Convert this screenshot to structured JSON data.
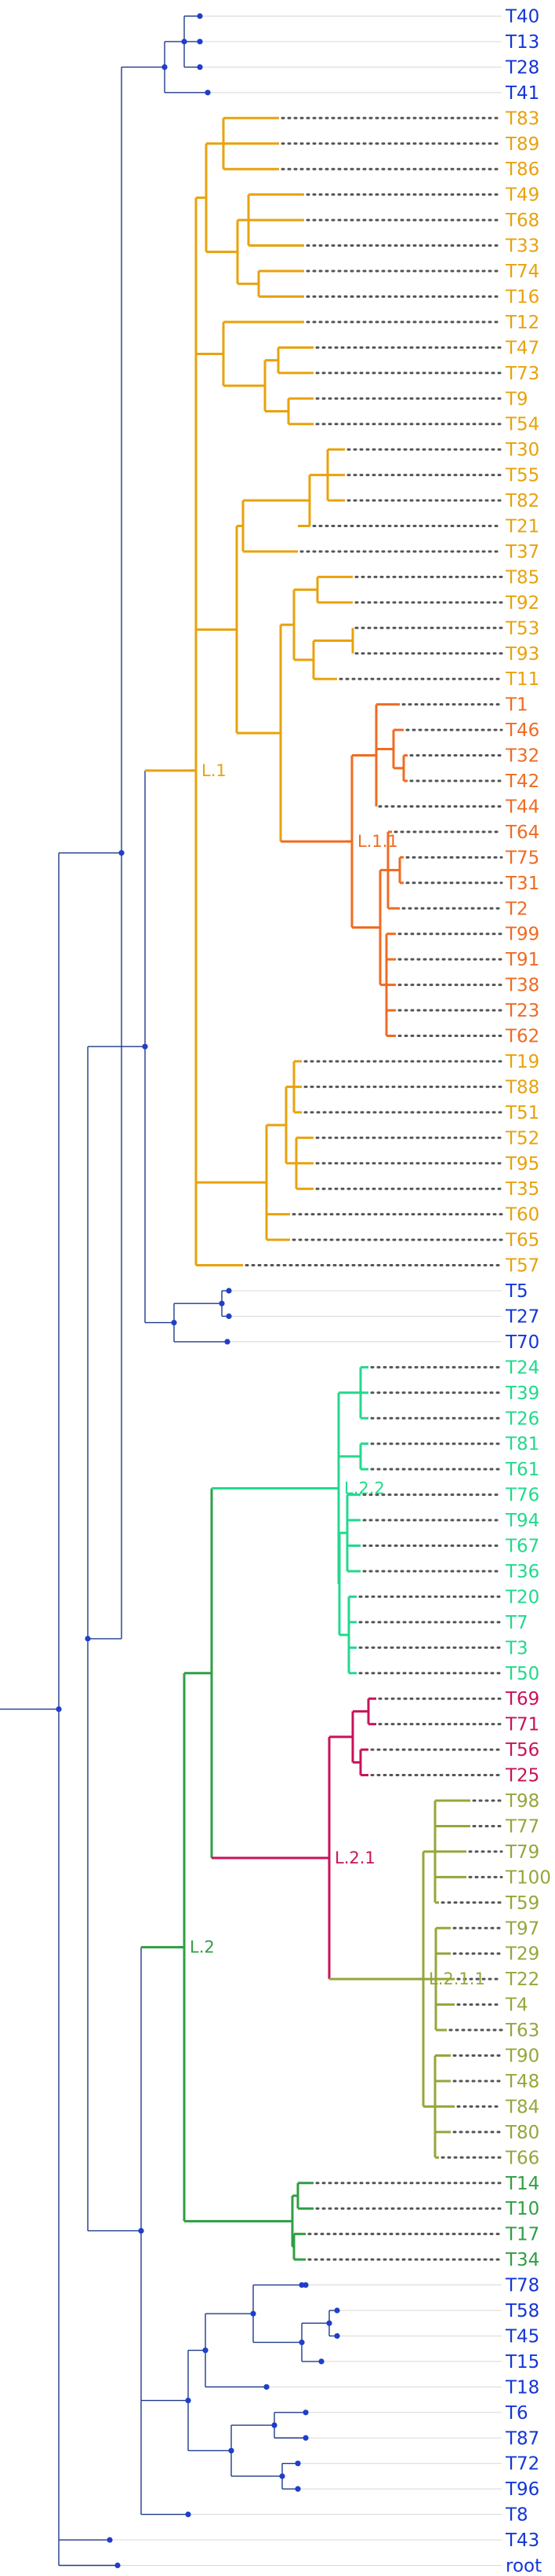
{
  "colors": {
    "backbone": "#1e3a8a",
    "node": "#1f3fc9",
    "blue": "#1436d6",
    "L1": "#e8a20c",
    "L1_1": "#ef6b22",
    "L2": "#2f9e44",
    "L2_2": "#22d98c",
    "L2_1": "#c8125a",
    "L2_1_1": "#94a73a",
    "dots": "#555555",
    "gridline": "#d8d8d8"
  },
  "clade_labels": {
    "L1": "L.1",
    "L1_1": "L.1.1",
    "L2": "L.2",
    "L2_2": "L.2.2",
    "L2_1": "L.2.1",
    "L2_1_1": "L.2.1.1"
  },
  "tips": [
    {
      "label": "T40",
      "group": "blue"
    },
    {
      "label": "T13",
      "group": "blue"
    },
    {
      "label": "T28",
      "group": "blue"
    },
    {
      "label": "T41",
      "group": "blue"
    },
    {
      "label": "T83",
      "group": "L1"
    },
    {
      "label": "T89",
      "group": "L1"
    },
    {
      "label": "T86",
      "group": "L1"
    },
    {
      "label": "T49",
      "group": "L1"
    },
    {
      "label": "T68",
      "group": "L1"
    },
    {
      "label": "T33",
      "group": "L1"
    },
    {
      "label": "T74",
      "group": "L1"
    },
    {
      "label": "T16",
      "group": "L1"
    },
    {
      "label": "T12",
      "group": "L1"
    },
    {
      "label": "T47",
      "group": "L1"
    },
    {
      "label": "T73",
      "group": "L1"
    },
    {
      "label": "T9",
      "group": "L1"
    },
    {
      "label": "T54",
      "group": "L1"
    },
    {
      "label": "T30",
      "group": "L1"
    },
    {
      "label": "T55",
      "group": "L1"
    },
    {
      "label": "T82",
      "group": "L1"
    },
    {
      "label": "T21",
      "group": "L1"
    },
    {
      "label": "T37",
      "group": "L1"
    },
    {
      "label": "T85",
      "group": "L1"
    },
    {
      "label": "T92",
      "group": "L1"
    },
    {
      "label": "T53",
      "group": "L1"
    },
    {
      "label": "T93",
      "group": "L1"
    },
    {
      "label": "T11",
      "group": "L1"
    },
    {
      "label": "T1",
      "group": "L1_1"
    },
    {
      "label": "T46",
      "group": "L1_1"
    },
    {
      "label": "T32",
      "group": "L1_1"
    },
    {
      "label": "T42",
      "group": "L1_1"
    },
    {
      "label": "T44",
      "group": "L1_1"
    },
    {
      "label": "T64",
      "group": "L1_1"
    },
    {
      "label": "T75",
      "group": "L1_1"
    },
    {
      "label": "T31",
      "group": "L1_1"
    },
    {
      "label": "T2",
      "group": "L1_1"
    },
    {
      "label": "T99",
      "group": "L1_1"
    },
    {
      "label": "T91",
      "group": "L1_1"
    },
    {
      "label": "T38",
      "group": "L1_1"
    },
    {
      "label": "T23",
      "group": "L1_1"
    },
    {
      "label": "T62",
      "group": "L1_1"
    },
    {
      "label": "T19",
      "group": "L1"
    },
    {
      "label": "T88",
      "group": "L1"
    },
    {
      "label": "T51",
      "group": "L1"
    },
    {
      "label": "T52",
      "group": "L1"
    },
    {
      "label": "T95",
      "group": "L1"
    },
    {
      "label": "T35",
      "group": "L1"
    },
    {
      "label": "T60",
      "group": "L1"
    },
    {
      "label": "T65",
      "group": "L1"
    },
    {
      "label": "T57",
      "group": "L1"
    },
    {
      "label": "T5",
      "group": "blue"
    },
    {
      "label": "T27",
      "group": "blue"
    },
    {
      "label": "T70",
      "group": "blue"
    },
    {
      "label": "T24",
      "group": "L2_2"
    },
    {
      "label": "T39",
      "group": "L2_2"
    },
    {
      "label": "T26",
      "group": "L2_2"
    },
    {
      "label": "T81",
      "group": "L2_2"
    },
    {
      "label": "T61",
      "group": "L2_2"
    },
    {
      "label": "T76",
      "group": "L2_2"
    },
    {
      "label": "T94",
      "group": "L2_2"
    },
    {
      "label": "T67",
      "group": "L2_2"
    },
    {
      "label": "T36",
      "group": "L2_2"
    },
    {
      "label": "T20",
      "group": "L2_2"
    },
    {
      "label": "T7",
      "group": "L2_2"
    },
    {
      "label": "T3",
      "group": "L2_2"
    },
    {
      "label": "T50",
      "group": "L2_2"
    },
    {
      "label": "T69",
      "group": "L2_1"
    },
    {
      "label": "T71",
      "group": "L2_1"
    },
    {
      "label": "T56",
      "group": "L2_1"
    },
    {
      "label": "T25",
      "group": "L2_1"
    },
    {
      "label": "T98",
      "group": "L2_1_1"
    },
    {
      "label": "T77",
      "group": "L2_1_1"
    },
    {
      "label": "T79",
      "group": "L2_1_1"
    },
    {
      "label": "T100",
      "group": "L2_1_1"
    },
    {
      "label": "T59",
      "group": "L2_1_1"
    },
    {
      "label": "T97",
      "group": "L2_1_1"
    },
    {
      "label": "T29",
      "group": "L2_1_1"
    },
    {
      "label": "T22",
      "group": "L2_1_1"
    },
    {
      "label": "T4",
      "group": "L2_1_1"
    },
    {
      "label": "T63",
      "group": "L2_1_1"
    },
    {
      "label": "T90",
      "group": "L2_1_1"
    },
    {
      "label": "T48",
      "group": "L2_1_1"
    },
    {
      "label": "T84",
      "group": "L2_1_1"
    },
    {
      "label": "T80",
      "group": "L2_1_1"
    },
    {
      "label": "T66",
      "group": "L2_1_1"
    },
    {
      "label": "T14",
      "group": "L2"
    },
    {
      "label": "T10",
      "group": "L2"
    },
    {
      "label": "T17",
      "group": "L2"
    },
    {
      "label": "T34",
      "group": "L2"
    },
    {
      "label": "T78",
      "group": "blue"
    },
    {
      "label": "T58",
      "group": "blue"
    },
    {
      "label": "T45",
      "group": "blue"
    },
    {
      "label": "T15",
      "group": "blue"
    },
    {
      "label": "T18",
      "group": "blue"
    },
    {
      "label": "T6",
      "group": "blue"
    },
    {
      "label": "T87",
      "group": "blue"
    },
    {
      "label": "T72",
      "group": "blue"
    },
    {
      "label": "T96",
      "group": "blue"
    },
    {
      "label": "T8",
      "group": "blue"
    },
    {
      "label": "T43",
      "group": "blue"
    },
    {
      "label": "root",
      "group": "blue"
    }
  ]
}
